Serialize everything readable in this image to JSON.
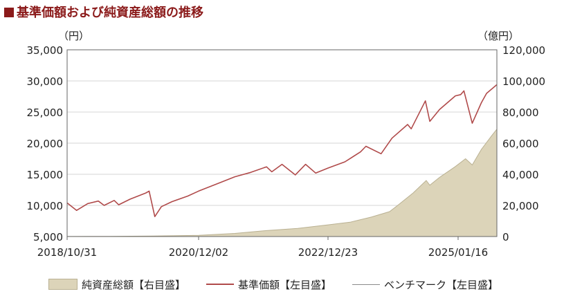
{
  "page": {
    "title": "基準価額および純資産総額の推移"
  },
  "chart_data": {
    "type": "line",
    "title": "基準価額および純資産総額の推移",
    "left_axis": {
      "unit_label": "（円）",
      "ylim": [
        5000,
        35000
      ],
      "ticks": [
        5000,
        10000,
        15000,
        20000,
        25000,
        30000,
        35000
      ],
      "tick_labels": [
        "5,000",
        "10,000",
        "15,000",
        "20,000",
        "25,000",
        "30,000",
        "35,000"
      ]
    },
    "right_axis": {
      "unit_label": "（億円）",
      "ylim": [
        0,
        120000
      ],
      "ticks": [
        0,
        20000,
        40000,
        60000,
        80000,
        100000,
        120000
      ],
      "tick_labels": [
        "0",
        "20,000",
        "40,000",
        "60,000",
        "80,000",
        "100,000",
        "120,000"
      ]
    },
    "x": {
      "range": [
        "2018/10/31",
        "2025/08/29"
      ],
      "ticks": [
        "2018/10/31",
        "2020/12/02",
        "2022/12/23",
        "2025/01/16"
      ]
    },
    "grid": true,
    "series": [
      {
        "name": "純資産総額【右目盛】",
        "type": "area",
        "axis": "right",
        "color": "#dcd4b9",
        "points": [
          [
            "2018/10/31",
            50
          ],
          [
            "2019/06/30",
            150
          ],
          [
            "2020/03/15",
            350
          ],
          [
            "2020/12/02",
            800
          ],
          [
            "2021/06/30",
            2000
          ],
          [
            "2021/12/31",
            3800
          ],
          [
            "2022/06/30",
            5200
          ],
          [
            "2022/12/23",
            7500
          ],
          [
            "2023/04/30",
            9200
          ],
          [
            "2023/08/31",
            12500
          ],
          [
            "2023/12/15",
            16000
          ],
          [
            "2024/01/31",
            20000
          ],
          [
            "2024/04/30",
            28000
          ],
          [
            "2024/07/15",
            36000
          ],
          [
            "2024/08/05",
            33000
          ],
          [
            "2024/09/30",
            38000
          ],
          [
            "2024/12/31",
            45000
          ],
          [
            "2025/02/28",
            50000
          ],
          [
            "2025/04/08",
            46000
          ],
          [
            "2025/05/31",
            56000
          ],
          [
            "2025/07/31",
            65000
          ],
          [
            "2025/08/29",
            69000
          ]
        ]
      },
      {
        "name": "基準価額【左目盛】",
        "type": "line",
        "axis": "left",
        "color": "#b04a4a",
        "points": [
          [
            "2018/10/31",
            10400
          ],
          [
            "2018/12/25",
            9200
          ],
          [
            "2019/02/28",
            10300
          ],
          [
            "2019/04/30",
            10700
          ],
          [
            "2019/06/03",
            10000
          ],
          [
            "2019/07/31",
            10800
          ],
          [
            "2019/08/26",
            10100
          ],
          [
            "2019/10/31",
            11000
          ],
          [
            "2020/01/31",
            12000
          ],
          [
            "2020/02/19",
            12300
          ],
          [
            "2020/03/23",
            8200
          ],
          [
            "2020/04/30",
            9800
          ],
          [
            "2020/06/30",
            10600
          ],
          [
            "2020/09/30",
            11500
          ],
          [
            "2020/12/02",
            12300
          ],
          [
            "2021/03/31",
            13600
          ],
          [
            "2021/06/30",
            14600
          ],
          [
            "2021/09/30",
            15300
          ],
          [
            "2021/12/31",
            16200
          ],
          [
            "2022/01/31",
            15400
          ],
          [
            "2022/03/31",
            16600
          ],
          [
            "2022/06/16",
            14900
          ],
          [
            "2022/08/15",
            16600
          ],
          [
            "2022/10/12",
            15200
          ],
          [
            "2022/12/23",
            16000
          ],
          [
            "2023/03/31",
            17000
          ],
          [
            "2023/06/30",
            18600
          ],
          [
            "2023/07/31",
            19500
          ],
          [
            "2023/10/27",
            18300
          ],
          [
            "2023/12/29",
            20800
          ],
          [
            "2024/03/29",
            23000
          ],
          [
            "2024/04/19",
            22300
          ],
          [
            "2024/07/10",
            26800
          ],
          [
            "2024/08/05",
            23500
          ],
          [
            "2024/09/30",
            25400
          ],
          [
            "2024/12/31",
            27600
          ],
          [
            "2025/01/31",
            27800
          ],
          [
            "2025/02/19",
            28400
          ],
          [
            "2025/04/08",
            23200
          ],
          [
            "2025/05/31",
            26500
          ],
          [
            "2025/06/30",
            28000
          ],
          [
            "2025/08/29",
            29400
          ]
        ]
      },
      {
        "name": "ベンチマーク【左目盛】",
        "type": "line",
        "axis": "left",
        "color": "#8a8a8a",
        "points": []
      }
    ],
    "legend": {
      "placement": "bottom",
      "entries": [
        "純資産総額【右目盛】",
        "基準価額【左目盛】",
        "ベンチマーク【左目盛】"
      ]
    }
  }
}
